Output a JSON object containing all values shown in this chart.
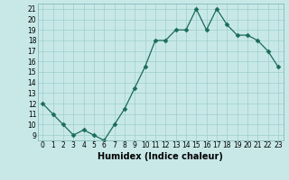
{
  "x": [
    0,
    1,
    2,
    3,
    4,
    5,
    6,
    7,
    8,
    9,
    10,
    11,
    12,
    13,
    14,
    15,
    16,
    17,
    18,
    19,
    20,
    21,
    22,
    23
  ],
  "y": [
    12,
    11,
    10,
    9,
    9.5,
    9,
    8.5,
    10,
    11.5,
    13.5,
    15.5,
    18,
    18,
    19,
    19,
    21,
    19,
    21,
    19.5,
    18.5,
    18.5,
    18,
    17,
    15.5
  ],
  "line_color": "#1a6b5a",
  "marker_color": "#1a6b5a",
  "bg_color": "#c8e8e8",
  "grid_color": "#9ecece",
  "xlabel": "Humidex (Indice chaleur)",
  "ylim": [
    8.5,
    21.5
  ],
  "xlim": [
    -0.5,
    23.5
  ],
  "yticks": [
    9,
    10,
    11,
    12,
    13,
    14,
    15,
    16,
    17,
    18,
    19,
    20,
    21
  ],
  "xticks": [
    0,
    1,
    2,
    3,
    4,
    5,
    6,
    7,
    8,
    9,
    10,
    11,
    12,
    13,
    14,
    15,
    16,
    17,
    18,
    19,
    20,
    21,
    22,
    23
  ],
  "xtick_labels": [
    "0",
    "1",
    "2",
    "3",
    "4",
    "5",
    "6",
    "7",
    "8",
    "9",
    "10",
    "11",
    "12",
    "13",
    "14",
    "15",
    "16",
    "17",
    "18",
    "19",
    "20",
    "21",
    "22",
    "23"
  ],
  "tick_fontsize": 5.5,
  "xlabel_fontsize": 7,
  "marker_size": 2.5,
  "line_width": 0.9
}
